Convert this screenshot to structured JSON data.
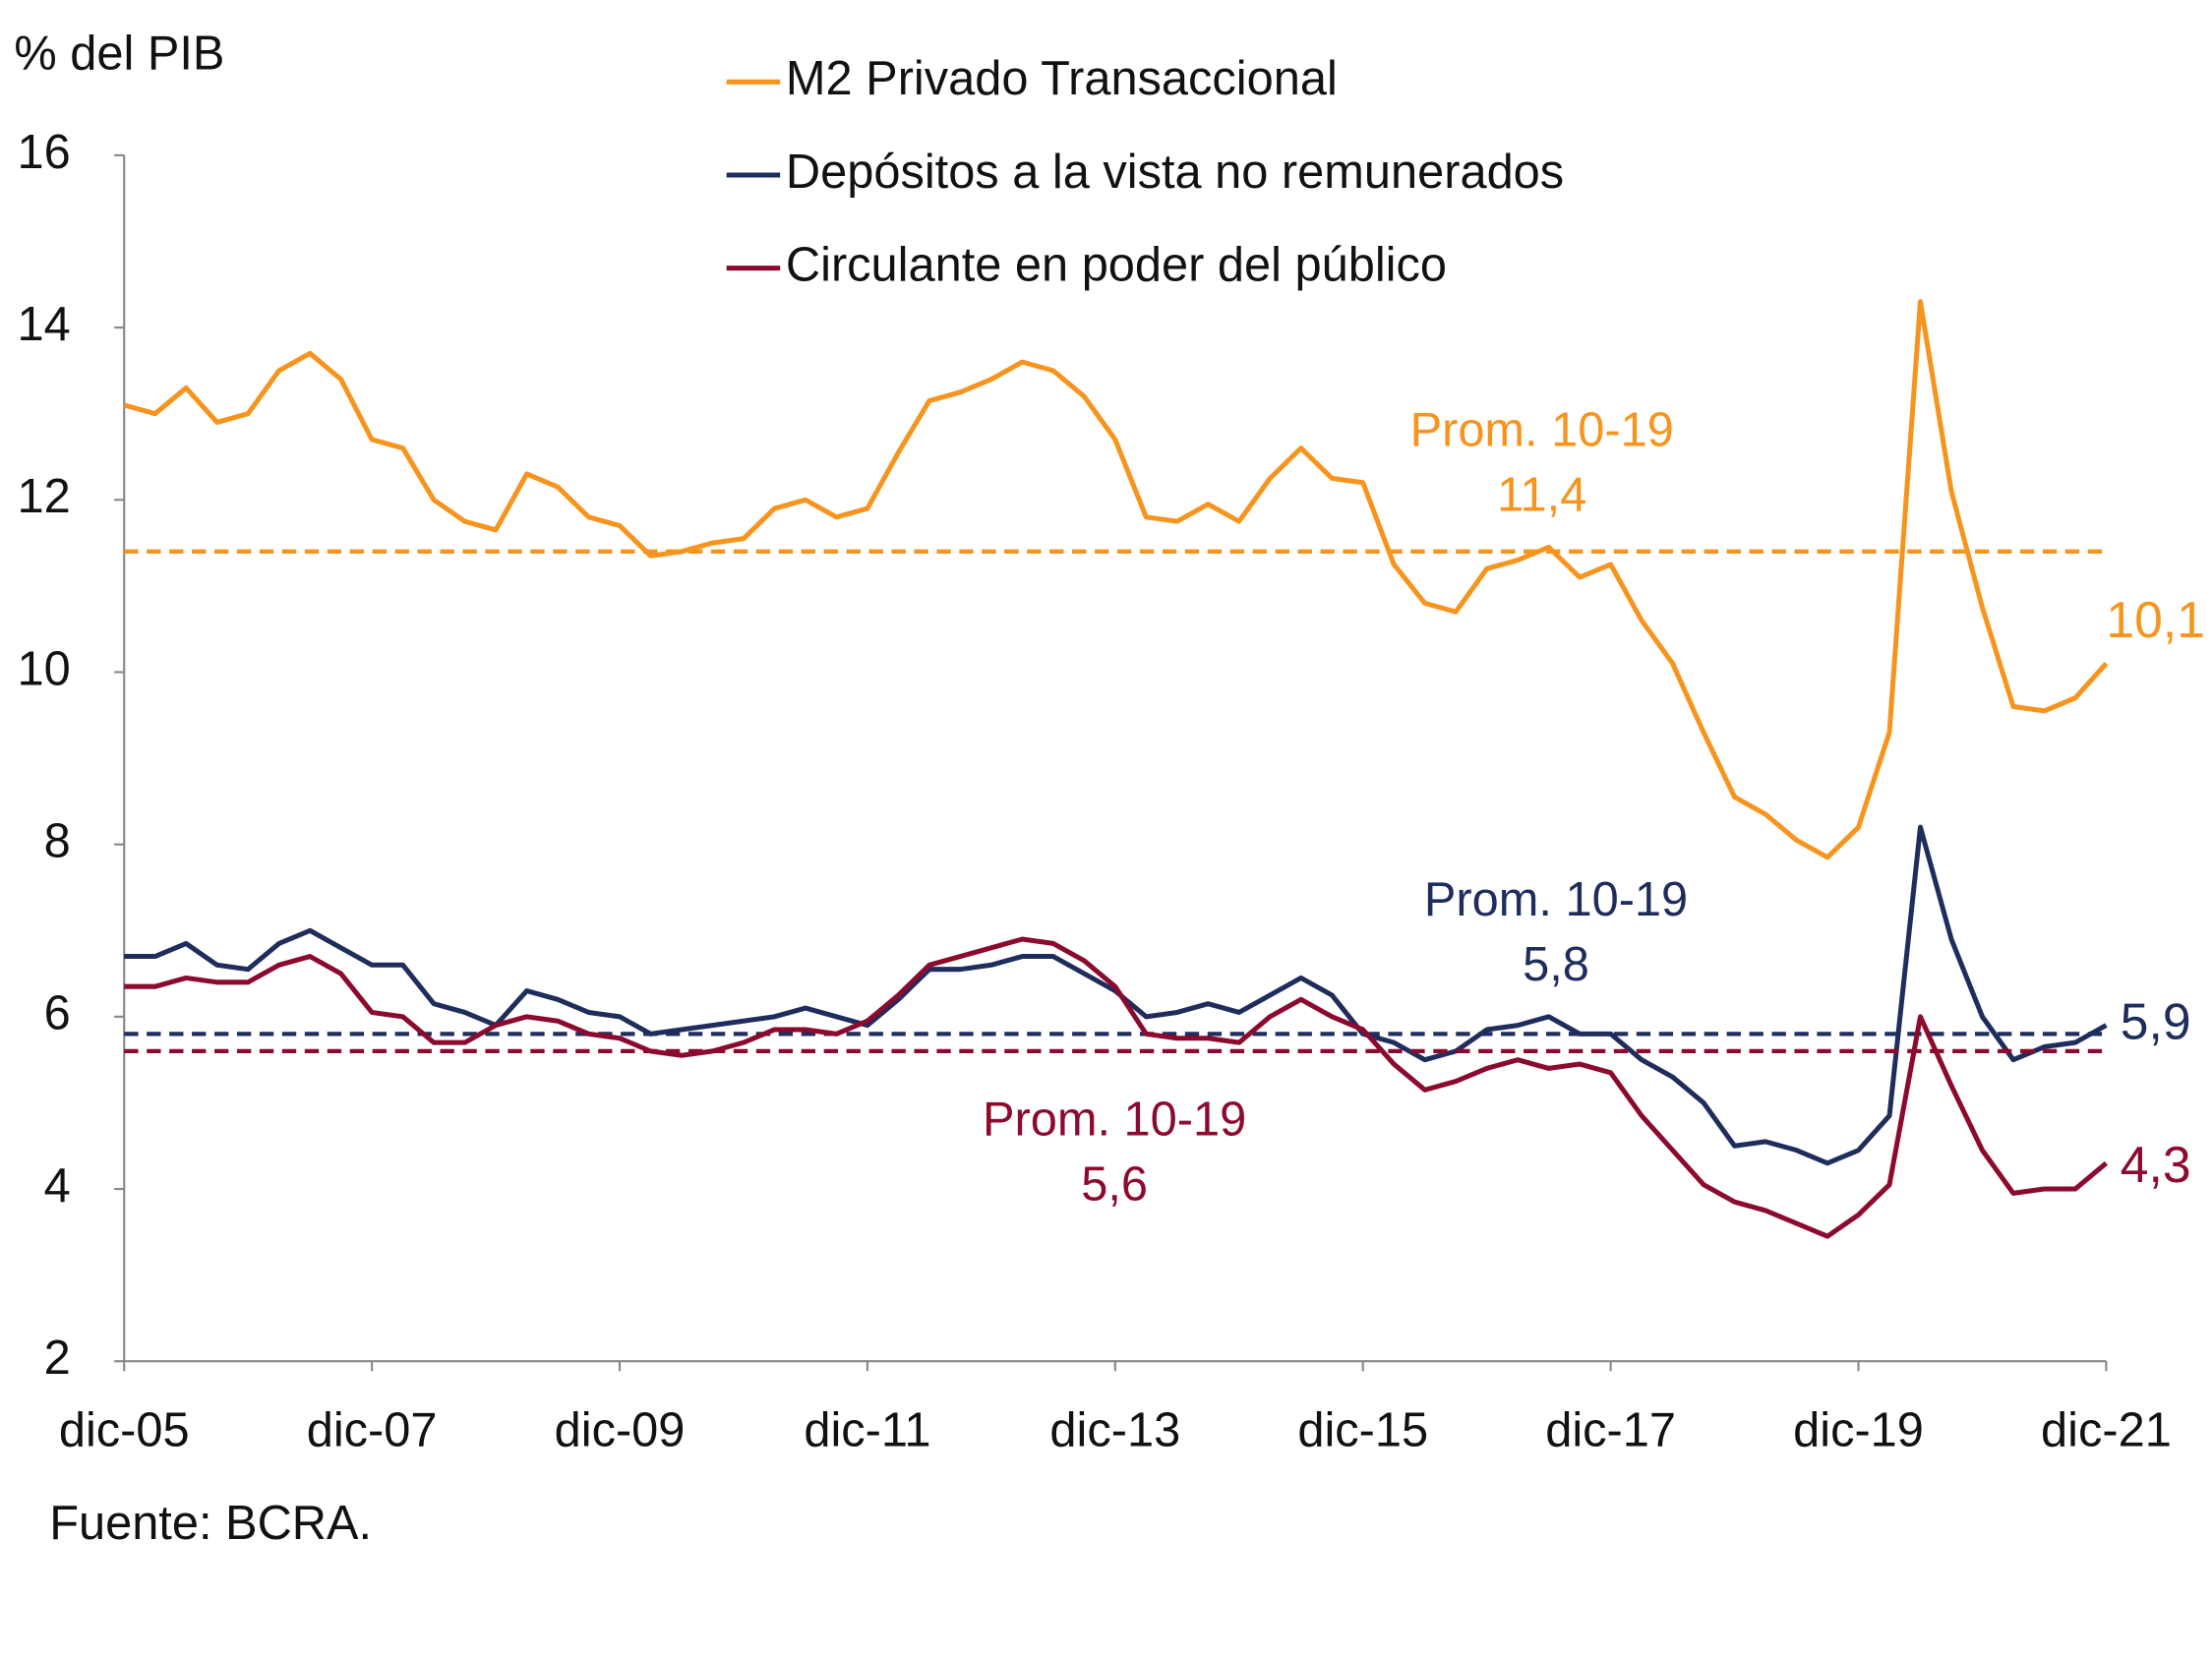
{
  "chart_data": {
    "type": "line",
    "y_axis_label": "% del PIB",
    "source": "Fuente: BCRA.",
    "legend": "top",
    "categories": [
      "dic-05",
      null,
      null,
      null,
      null,
      null,
      null,
      null,
      "dic-07",
      null,
      null,
      null,
      null,
      null,
      null,
      null,
      "dic-09",
      null,
      null,
      null,
      null,
      null,
      null,
      null,
      "dic-11",
      null,
      null,
      null,
      null,
      null,
      null,
      null,
      "dic-13",
      null,
      null,
      null,
      null,
      null,
      null,
      null,
      "dic-15",
      null,
      null,
      null,
      null,
      null,
      null,
      null,
      "dic-17",
      null,
      null,
      null,
      null,
      null,
      null,
      null,
      "dic-19",
      null,
      null,
      null,
      null,
      null,
      null,
      null,
      "dic-21"
    ],
    "ylim": [
      2,
      16
    ],
    "yticks": [
      2,
      4,
      6,
      8,
      10,
      12,
      14,
      16
    ],
    "series": [
      {
        "name": "M2 Privado Transaccional",
        "color": "#f7941d",
        "values": [
          13.1,
          13.0,
          13.3,
          12.9,
          13.0,
          13.5,
          13.7,
          13.4,
          12.7,
          12.6,
          12.0,
          11.75,
          11.65,
          12.3,
          12.15,
          11.8,
          11.7,
          11.35,
          11.4,
          11.5,
          11.55,
          11.9,
          12.0,
          11.8,
          11.9,
          12.55,
          13.15,
          13.25,
          13.4,
          13.6,
          13.5,
          13.2,
          12.7,
          11.8,
          11.75,
          11.95,
          11.75,
          12.25,
          12.6,
          12.25,
          12.2,
          11.25,
          10.8,
          10.7,
          11.2,
          11.3,
          11.45,
          11.1,
          11.25,
          10.6,
          10.1,
          9.3,
          8.55,
          8.35,
          8.05,
          7.85,
          8.2,
          9.3,
          14.3,
          12.1,
          10.75,
          9.6,
          9.55,
          9.7,
          10.1
        ],
        "value_labels": [
          null,
          null,
          null,
          null,
          null,
          null,
          null,
          null,
          null,
          null,
          null,
          null,
          null,
          null,
          null,
          null,
          null,
          null,
          null,
          null,
          null,
          null,
          null,
          null,
          null,
          null,
          null,
          null,
          null,
          null,
          null,
          null,
          null,
          null,
          null,
          null,
          null,
          null,
          null,
          null,
          null,
          null,
          null,
          null,
          null,
          null,
          null,
          null,
          null,
          null,
          null,
          null,
          null,
          null,
          null,
          null,
          null,
          null,
          null,
          null,
          null,
          null,
          null,
          null,
          "10,1"
        ],
        "average": {
          "label": "Prom. 10-19",
          "value": 11.4,
          "value_label": "11,4"
        }
      },
      {
        "name": "Depósitos a la vista no remunerados",
        "color": "#1f2d5c",
        "values": [
          6.7,
          6.7,
          6.85,
          6.6,
          6.55,
          6.85,
          7.0,
          6.8,
          6.6,
          6.6,
          6.15,
          6.05,
          5.9,
          6.3,
          6.2,
          6.05,
          6.0,
          5.8,
          5.85,
          5.9,
          5.95,
          6.0,
          6.1,
          6.0,
          5.9,
          6.2,
          6.55,
          6.55,
          6.6,
          6.7,
          6.7,
          6.5,
          6.3,
          6.0,
          6.05,
          6.15,
          6.05,
          6.25,
          6.45,
          6.25,
          5.8,
          5.7,
          5.5,
          5.6,
          5.85,
          5.9,
          6.0,
          5.8,
          5.8,
          5.5,
          5.3,
          5.0,
          4.5,
          4.55,
          4.45,
          4.3,
          4.45,
          4.85,
          8.2,
          6.9,
          6.0,
          5.5,
          5.65,
          5.7,
          5.9
        ],
        "value_labels": [
          null,
          null,
          null,
          null,
          null,
          null,
          null,
          null,
          null,
          null,
          null,
          null,
          null,
          null,
          null,
          null,
          null,
          null,
          null,
          null,
          null,
          null,
          null,
          null,
          null,
          null,
          null,
          null,
          null,
          null,
          null,
          null,
          null,
          null,
          null,
          null,
          null,
          null,
          null,
          null,
          null,
          null,
          null,
          null,
          null,
          null,
          null,
          null,
          null,
          null,
          null,
          null,
          null,
          null,
          null,
          null,
          null,
          null,
          null,
          null,
          null,
          null,
          null,
          null,
          "5,9"
        ],
        "average": {
          "label": "Prom. 10-19",
          "value": 5.8,
          "value_label": "5,8"
        }
      },
      {
        "name": "Circulante en poder del público",
        "color": "#8b0a2e",
        "values": [
          6.35,
          6.35,
          6.45,
          6.4,
          6.4,
          6.6,
          6.7,
          6.5,
          6.05,
          6.0,
          5.7,
          5.7,
          5.9,
          6.0,
          5.95,
          5.8,
          5.75,
          5.6,
          5.55,
          5.6,
          5.7,
          5.85,
          5.85,
          5.8,
          5.95,
          6.25,
          6.6,
          6.7,
          6.8,
          6.9,
          6.85,
          6.65,
          6.35,
          5.8,
          5.75,
          5.75,
          5.7,
          6.0,
          6.2,
          6.0,
          5.85,
          5.45,
          5.15,
          5.25,
          5.4,
          5.5,
          5.4,
          5.45,
          5.35,
          4.85,
          4.45,
          4.05,
          3.85,
          3.75,
          3.6,
          3.45,
          3.7,
          4.05,
          6.0,
          5.2,
          4.45,
          3.95,
          4.0,
          4.0,
          4.3
        ],
        "value_labels": [
          null,
          null,
          null,
          null,
          null,
          null,
          null,
          null,
          null,
          null,
          null,
          null,
          null,
          null,
          null,
          null,
          null,
          null,
          null,
          null,
          null,
          null,
          null,
          null,
          null,
          null,
          null,
          null,
          null,
          null,
          null,
          null,
          null,
          null,
          null,
          null,
          null,
          null,
          null,
          null,
          null,
          null,
          null,
          null,
          null,
          null,
          null,
          null,
          null,
          null,
          null,
          null,
          null,
          null,
          null,
          null,
          null,
          null,
          null,
          null,
          null,
          null,
          null,
          null,
          "4,3"
        ],
        "average": {
          "label": "Prom. 10-19",
          "value": 5.6,
          "value_label": "5,6"
        }
      }
    ]
  }
}
